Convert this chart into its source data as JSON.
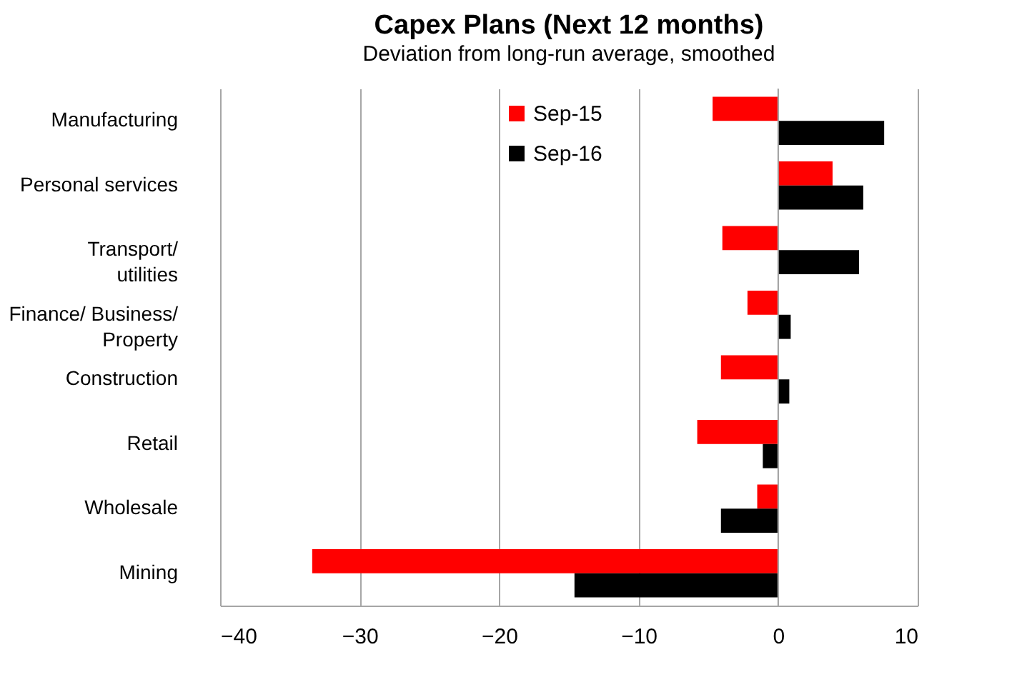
{
  "chart_data": {
    "type": "bar",
    "orientation": "horizontal",
    "title": "Capex Plans (Next 12 months)",
    "subtitle": "Deviation from long-run average, smoothed",
    "categories": [
      "Manufacturing",
      "Personal services",
      "Transport/ utilities",
      "Finance/ Business/ Property",
      "Construction",
      "Retail",
      "Wholesale",
      "Mining"
    ],
    "series": [
      {
        "name": "Sep-15",
        "color": "#ff0000",
        "values": [
          -4.7,
          3.9,
          -4.0,
          -2.2,
          -4.1,
          -5.8,
          -1.5,
          -33.4
        ]
      },
      {
        "name": "Sep-16",
        "color": "#000000",
        "values": [
          7.6,
          6.1,
          5.8,
          0.9,
          0.8,
          -1.1,
          -4.1,
          -14.6
        ]
      }
    ],
    "xlim": [
      -40,
      10
    ],
    "xticks": [
      -40,
      -30,
      -20,
      -10,
      0,
      10
    ],
    "grid": "x",
    "legend": "top"
  }
}
